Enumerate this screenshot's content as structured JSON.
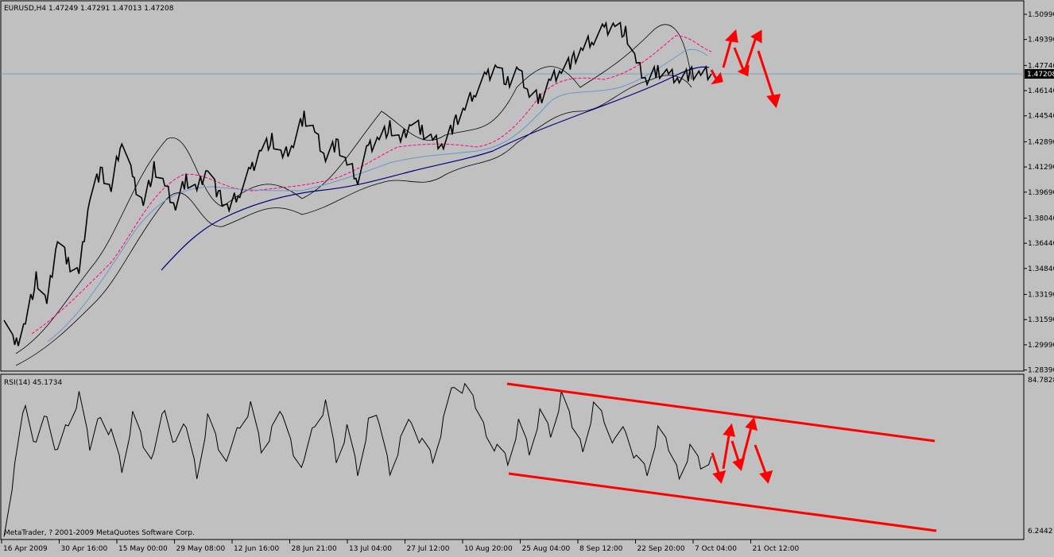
{
  "chart_data": [
    {
      "type": "line",
      "title": "EURUSD,H4  1.47249 1.47291 1.47013 1.47208",
      "symbol": "EURUSD",
      "timeframe": "H4",
      "ohlc": {
        "open": 1.47249,
        "high": 1.47291,
        "low": 1.47013,
        "close": 1.47208
      },
      "current_price_label": "1.47208",
      "ylim": [
        1.2837,
        1.5099
      ],
      "y_ticks": [
        "1.50990",
        "1.49390",
        "1.47740",
        "1.46140",
        "1.44540",
        "1.42890",
        "1.41290",
        "1.39690",
        "1.38040",
        "1.36440",
        "1.34840",
        "1.33190",
        "1.31590",
        "1.29990",
        "1.28390"
      ],
      "series": [
        {
          "name": "",
          "x": [
            0,
            2,
            4,
            6,
            8,
            10,
            12,
            14,
            16,
            18,
            20,
            22,
            24,
            26,
            28,
            30,
            32,
            34,
            36,
            38,
            40,
            42,
            44,
            46,
            48,
            50,
            52,
            54,
            56,
            58,
            60,
            62,
            64,
            66,
            68,
            70,
            72,
            74,
            76,
            78,
            80,
            82,
            84,
            86,
            88,
            90,
            92,
            94,
            96,
            98,
            100,
            102,
            104,
            106,
            108,
            110,
            112,
            114,
            116,
            118,
            120,
            122,
            124,
            126,
            128,
            130,
            132
          ],
          "values": [
            1.32,
            1.298,
            1.315,
            1.342,
            1.325,
            1.368,
            1.352,
            1.345,
            1.395,
            1.41,
            1.398,
            1.432,
            1.405,
            1.39,
            1.412,
            1.4,
            1.388,
            1.405,
            1.398,
            1.414,
            1.395,
            1.386,
            1.398,
            1.41,
            1.425,
            1.43,
            1.418,
            1.428,
            1.445,
            1.435,
            1.42,
            1.428,
            1.415,
            1.406,
            1.425,
            1.432,
            1.438,
            1.428,
            1.442,
            1.436,
            1.43,
            1.428,
            1.44,
            1.45,
            1.462,
            1.47,
            1.478,
            1.466,
            1.474,
            1.46,
            1.456,
            1.468,
            1.476,
            1.48,
            1.488,
            1.495,
            1.5,
            1.504,
            1.498,
            1.478,
            1.468,
            1.474,
            1.472,
            1.47,
            1.472,
            1.472,
            1.472
          ]
        }
      ]
    },
    {
      "type": "line",
      "title": "RSI(14) 45.1734",
      "indicator": "RSI",
      "period": 14,
      "current_value": 45.1734,
      "ylim": [
        6.2442,
        84.7828
      ],
      "y_ticks": [
        "84.7828",
        "6.2442"
      ],
      "series": [
        {
          "name": "",
          "x": [
            0,
            2,
            4,
            6,
            8,
            10,
            12,
            14,
            16,
            18,
            20,
            22,
            24,
            26,
            28,
            30,
            32,
            34,
            36,
            38,
            40,
            42,
            44,
            46,
            48,
            50,
            52,
            54,
            56,
            58,
            60,
            62,
            64,
            66,
            68,
            70,
            72,
            74,
            76,
            78,
            80,
            82,
            84,
            86,
            88,
            90,
            92,
            94,
            96,
            98,
            100,
            102,
            104,
            106,
            108,
            110,
            112,
            114,
            116,
            118,
            120,
            122,
            124,
            126,
            128,
            130,
            132
          ],
          "values": [
            8,
            40,
            75,
            50,
            68,
            45,
            62,
            74,
            48,
            70,
            58,
            40,
            66,
            52,
            44,
            70,
            48,
            60,
            38,
            66,
            52,
            44,
            62,
            70,
            48,
            56,
            66,
            50,
            42,
            64,
            72,
            44,
            58,
            36,
            60,
            62,
            40,
            54,
            66,
            52,
            44,
            62,
            82,
            78,
            70,
            60,
            50,
            44,
            62,
            48,
            66,
            56,
            74,
            60,
            52,
            72,
            66,
            52,
            60,
            42,
            36,
            56,
            48,
            38,
            50,
            42,
            45
          ]
        }
      ],
      "x_ticks": [
        "16 Apr 2009",
        "30 Apr 16:00",
        "15 May 00:00",
        "29 May 08:00",
        "12 Jun 16:00",
        "28 Jun 21:00",
        "13 Jul 04:00",
        "27 Jul 12:00",
        "10 Aug 20:00",
        "25 Aug 04:00",
        "8 Sep 12:00",
        "22 Sep 20:00",
        "7 Oct 04:00",
        "21 Oct 12:00"
      ]
    }
  ],
  "footer": {
    "copyright": "MetaTrader, ? 2001-2009 MetaQuotes Software Corp."
  },
  "colors": {
    "background": "#c0c0c0",
    "price": "#000000",
    "ma_blue": "#00007f",
    "ma_magenta": "#ff0080",
    "ma_light": "#6699cc",
    "arrows": "#ff0000",
    "current_line": "#7f9fbf"
  }
}
